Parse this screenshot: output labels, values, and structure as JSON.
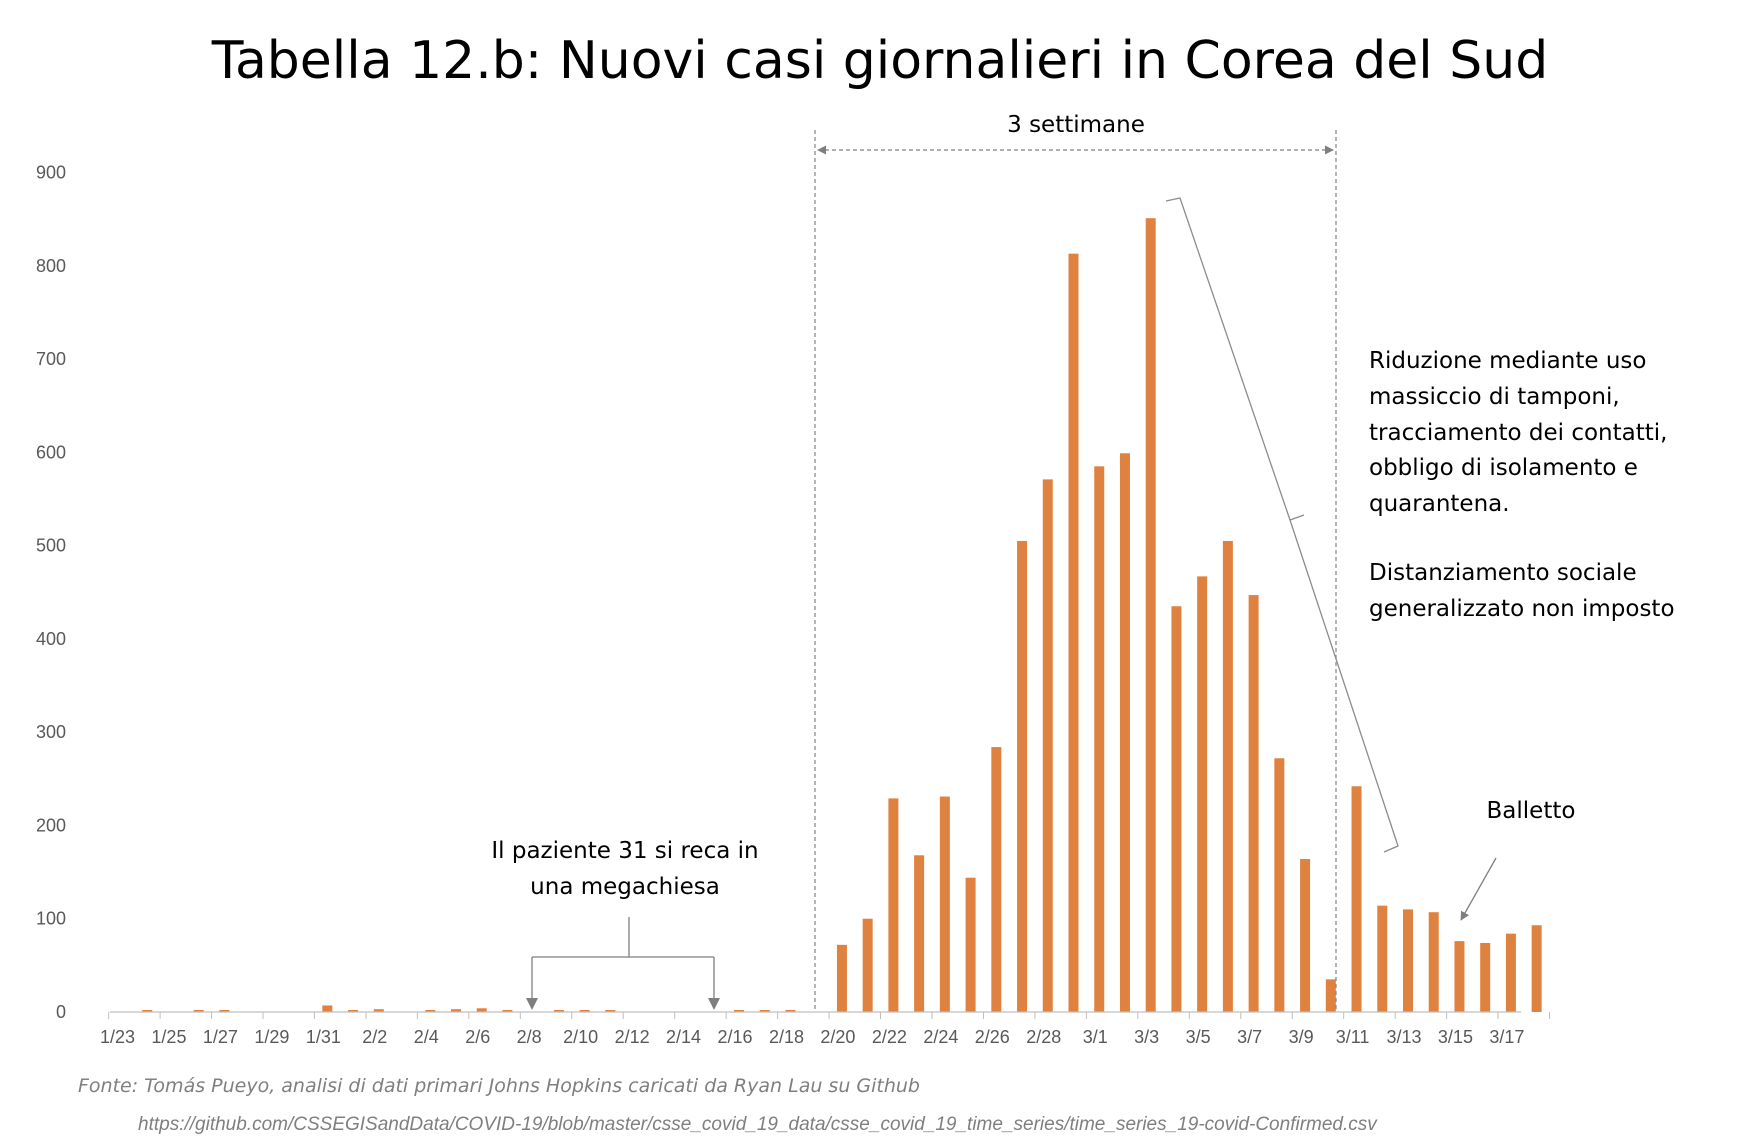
{
  "chart_data": {
    "type": "bar",
    "title": "Tabella 12.b: Nuovi casi giornalieri in Corea del Sud",
    "xlabel": "",
    "ylabel": "",
    "ylim": [
      0,
      900
    ],
    "yticks": [
      "0",
      "100",
      "200",
      "300",
      "400",
      "500",
      "600",
      "700",
      "800",
      "900"
    ],
    "grid": false,
    "bar_color": "#E0823F",
    "categories": [
      "1/23",
      "1/24",
      "1/25",
      "1/26",
      "1/27",
      "1/28",
      "1/29",
      "1/30",
      "1/31",
      "2/1",
      "2/2",
      "2/3",
      "2/4",
      "2/5",
      "2/6",
      "2/7",
      "2/8",
      "2/9",
      "2/10",
      "2/11",
      "2/12",
      "2/13",
      "2/14",
      "2/15",
      "2/16",
      "2/17",
      "2/18",
      "2/19",
      "2/20",
      "2/21",
      "2/22",
      "2/23",
      "2/24",
      "2/25",
      "2/26",
      "2/27",
      "2/28",
      "2/29",
      "3/1",
      "3/2",
      "3/3",
      "3/4",
      "3/5",
      "3/6",
      "3/7",
      "3/8",
      "3/9",
      "3/10",
      "3/11",
      "3/12",
      "3/13",
      "3/14",
      "3/15",
      "3/16",
      "3/17",
      "3/18"
    ],
    "xtick_labels": [
      "1/23",
      "1/25",
      "1/27",
      "1/29",
      "1/31",
      "2/2",
      "2/4",
      "2/6",
      "2/8",
      "2/10",
      "2/12",
      "2/14",
      "2/16",
      "2/18",
      "2/20",
      "2/22",
      "2/24",
      "2/26",
      "2/28",
      "3/1",
      "3/3",
      "3/5",
      "3/7",
      "3/9",
      "3/11",
      "3/13",
      "3/15",
      "3/17"
    ],
    "values": [
      0,
      1,
      0,
      1,
      1,
      0,
      0,
      0,
      7,
      1,
      3,
      0,
      1,
      3,
      4,
      1,
      0,
      1,
      1,
      1,
      0,
      0,
      0,
      0,
      1,
      1,
      1,
      0,
      72,
      100,
      229,
      168,
      231,
      144,
      284,
      505,
      571,
      813,
      585,
      599,
      851,
      435,
      467,
      505,
      447,
      272,
      164,
      35,
      242,
      114,
      110,
      107,
      76,
      74,
      84,
      93
    ]
  },
  "annotations": {
    "three_weeks": "3 settimane",
    "reduction_lines": [
      "Riduzione mediante uso",
      "massiccio di tamponi,",
      "tracciamento dei contatti,",
      "obbligo di isolamento e",
      "quarantena."
    ],
    "distancing_lines": [
      "Distanziamento sociale",
      "generalizzato non imposto"
    ],
    "ballet": "Balletto",
    "patient31_lines": [
      "Il paziente 31 si reca in",
      "una megachiesa"
    ]
  },
  "source": {
    "text": "Fonte: Tomás Pueyo, analisi di dati primari Johns Hopkins caricati da Ryan Lau su Github",
    "url": "https://github.com/CSSEGISandData/COVID-19/blob/master/csse_covid_19_data/csse_covid_19_time_series/time_series_19-covid-Confirmed.csv"
  }
}
